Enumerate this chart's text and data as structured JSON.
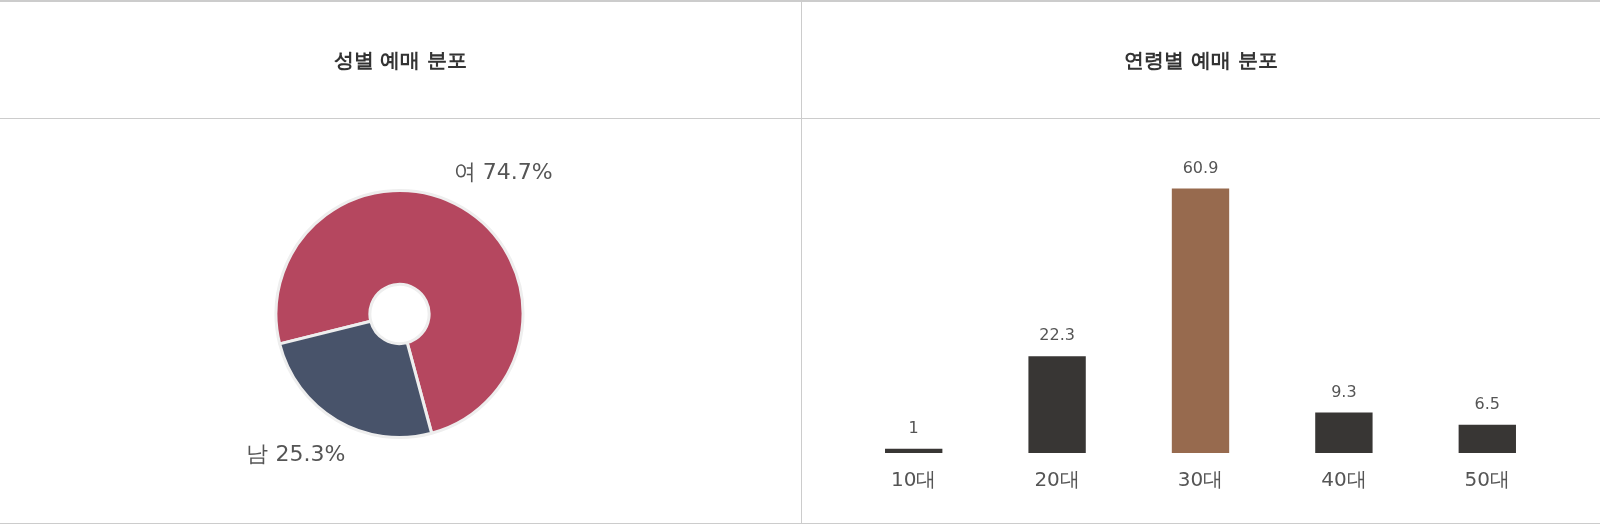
{
  "chart_data": [
    {
      "type": "donut",
      "title": "성별 예매 분포",
      "categories": [
        "여",
        "남"
      ],
      "values": [
        74.7,
        25.3
      ],
      "colors": [
        "#b5475f",
        "#48536a"
      ],
      "value_labels": [
        "74.7%",
        "25.3%"
      ]
    },
    {
      "type": "bar",
      "title": "연령별 예매 분포",
      "categories": [
        "10대",
        "20대",
        "30대",
        "40대",
        "50대"
      ],
      "values": [
        1,
        22.3,
        60.9,
        9.3,
        6.5
      ],
      "colors": [
        "#383634",
        "#383634",
        "#976a4e",
        "#383634",
        "#383634"
      ],
      "data_labels": true
    }
  ]
}
